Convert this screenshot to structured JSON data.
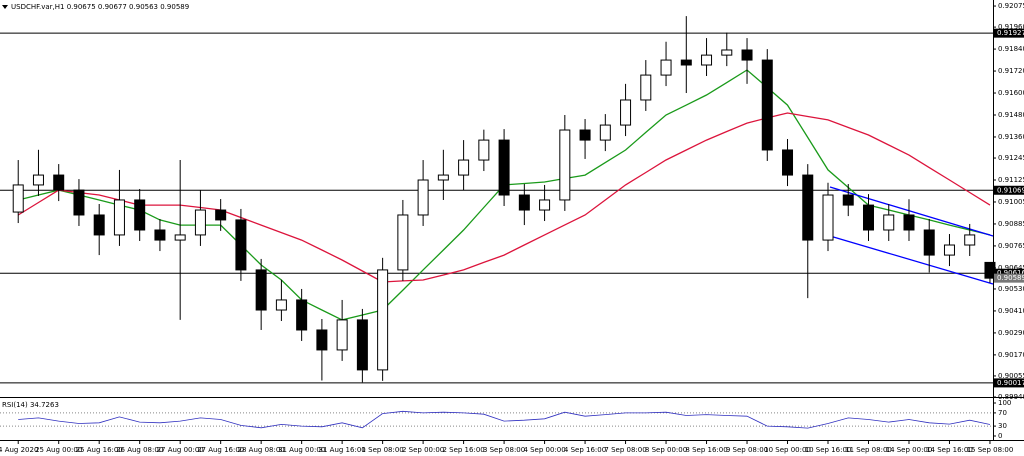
{
  "chart_data": {
    "type": "candlestick",
    "title": "USDCHF.var,H1  0.90675 0.90677 0.90563 0.90589",
    "xlim": [
      -0.9,
      48.15
    ],
    "xticks": [
      {
        "value": 0,
        "label": "4 Aug 2020"
      },
      {
        "value": 2,
        "label": "25 Aug 00:00"
      },
      {
        "value": 4,
        "label": "25 Aug 16:00"
      },
      {
        "value": 6,
        "label": "26 Aug 08:00"
      },
      {
        "value": 8,
        "label": "27 Aug 00:00"
      },
      {
        "value": 10,
        "label": "27 Aug 16:00"
      },
      {
        "value": 12,
        "label": "28 Aug 08:00"
      },
      {
        "value": 14,
        "label": "31 Aug 00:00"
      },
      {
        "value": 16,
        "label": "31 Aug 16:00"
      },
      {
        "value": 18,
        "label": "1 Sep 08:00"
      },
      {
        "value": 20,
        "label": "2 Sep 00:00"
      },
      {
        "value": 22,
        "label": "2 Sep 16:00"
      },
      {
        "value": 24,
        "label": "3 Sep 08:00"
      },
      {
        "value": 26,
        "label": "4 Sep 00:00"
      },
      {
        "value": 28,
        "label": "4 Sep 16:00"
      },
      {
        "value": 30,
        "label": "7 Sep 08:00"
      },
      {
        "value": 32,
        "label": "8 Sep 00:00"
      },
      {
        "value": 34,
        "label": "8 Sep 16:00"
      },
      {
        "value": 36,
        "label": "9 Sep 08:00"
      },
      {
        "value": 38,
        "label": "10 Sep 00:00"
      },
      {
        "value": 40,
        "label": "10 Sep 16:00"
      },
      {
        "value": 42,
        "label": "11 Sep 08:00"
      },
      {
        "value": 44,
        "label": "14 Sep 00:00"
      },
      {
        "value": 46,
        "label": "14 Sep 16:00"
      },
      {
        "value": 48,
        "label": "15 Sep 08:00"
      }
    ],
    "ylim": [
      0.8994,
      0.92108
    ],
    "yticks": [
      0.92075,
      {
        "value": 0.9196,
        "label": "0.91960"
      },
      {
        "value": 0.9184,
        "label": "0.91840"
      },
      {
        "value": 0.9172,
        "label": "0.91720"
      },
      {
        "value": 0.916,
        "label": "0.91600"
      },
      {
        "value": 0.9148,
        "label": "0.91480"
      },
      {
        "value": 0.9136,
        "label": "0.91360"
      },
      0.91245,
      0.91125,
      0.91005,
      0.90885,
      0.90765,
      0.90645,
      {
        "value": 0.9053,
        "label": "0.90530"
      },
      {
        "value": 0.9041,
        "label": "0.90410"
      },
      {
        "value": 0.9029,
        "label": "0.90290"
      },
      {
        "value": 0.9017,
        "label": "0.90170"
      },
      0.90055,
      {
        "value": 0.8994,
        "label": "0.89940"
      }
    ],
    "open": [
      0.9095,
      0.91098,
      0.91152,
      0.9107,
      0.90934,
      0.90825,
      0.91016,
      0.90852,
      0.90797,
      0.90825,
      0.90961,
      0.90907,
      0.90634,
      0.90415,
      0.9047,
      0.90306,
      0.90197,
      0.90361,
      0.90088,
      0.90634,
      0.90934,
      0.91125,
      0.91152,
      0.91234,
      0.91343,
      0.91043,
      0.90961,
      0.91016,
      0.91398,
      0.91343,
      0.91425,
      0.91562,
      0.91698,
      0.9178,
      0.91753,
      0.91807,
      0.91835,
      0.9178,
      0.91289,
      0.91152,
      0.90797,
      0.91043,
      0.90988,
      0.90852,
      0.90934,
      0.90852,
      0.90715,
      0.9077,
      0.90675
    ],
    "high": [
      0.91234,
      0.9129,
      0.91212,
      0.9113,
      0.90994,
      0.9118,
      0.91076,
      0.90912,
      0.91234,
      0.9107,
      0.91021,
      0.90967,
      0.90694,
      0.9058,
      0.9053,
      0.90366,
      0.9047,
      0.90421,
      0.907,
      0.91016,
      0.91234,
      0.9129,
      0.91343,
      0.914,
      0.91403,
      0.91103,
      0.91098,
      0.9148,
      0.91458,
      0.91485,
      0.9165,
      0.9178,
      0.9188,
      0.9202,
      0.919,
      0.9193,
      0.919,
      0.9184,
      0.91349,
      0.91212,
      0.9111,
      0.91103,
      0.91048,
      0.90994,
      0.9102,
      0.90912,
      0.9083,
      0.90885,
      0.90677
    ],
    "low": [
      0.9089,
      0.91038,
      0.9101,
      0.90874,
      0.90715,
      0.90765,
      0.90792,
      0.90737,
      0.90361,
      0.90765,
      0.90847,
      0.90574,
      0.90306,
      0.90355,
      0.90246,
      0.9003,
      0.90137,
      0.9002,
      0.90028,
      0.90574,
      0.90874,
      0.91016,
      0.9107,
      0.91174,
      0.90983,
      0.90879,
      0.90901,
      0.90956,
      0.9124,
      0.91283,
      0.91365,
      0.91502,
      0.91638,
      0.916,
      0.91693,
      0.91747,
      0.9165,
      0.91229,
      0.91092,
      0.9048,
      0.90737,
      0.90928,
      0.90792,
      0.90792,
      0.90792,
      0.9062,
      0.90655,
      0.9071,
      0.90563
    ],
    "close": [
      0.91098,
      0.91152,
      0.9107,
      0.90934,
      0.90825,
      0.91016,
      0.90852,
      0.90797,
      0.90825,
      0.90961,
      0.90907,
      0.90634,
      0.90415,
      0.9047,
      0.90306,
      0.90197,
      0.90361,
      0.90088,
      0.90634,
      0.90934,
      0.91125,
      0.91152,
      0.91234,
      0.91343,
      0.91043,
      0.90961,
      0.91016,
      0.91398,
      0.91343,
      0.91425,
      0.91562,
      0.91698,
      0.9178,
      0.91753,
      0.91807,
      0.91835,
      0.9178,
      0.91289,
      0.91152,
      0.90797,
      0.91043,
      0.90988,
      0.90852,
      0.90934,
      0.90852,
      0.90715,
      0.9077,
      0.90825,
      0.90589
    ],
    "lines": [
      {
        "color": "#1a9a1a",
        "values": [
          0.91016,
          0.91043,
          0.9107,
          0.91043,
          0.91016,
          0.90988,
          0.90961,
          0.90907,
          0.90879,
          0.90879,
          0.90879,
          0.9077,
          0.90661,
          0.90579,
          0.9047,
          0.90415,
          0.90361,
          0.90388,
          0.90415,
          0.90524,
          0.90634,
          0.90743,
          0.90852,
          0.90975,
          0.91098,
          0.91106,
          0.91114,
          0.91133,
          0.91152,
          0.9122,
          0.91289,
          0.91385,
          0.9148,
          0.91534,
          0.91589,
          0.91657,
          0.91726,
          0.9163,
          0.91534,
          0.91357,
          0.9118,
          0.91084,
          0.90988,
          0.90961,
          0.90934,
          0.90907,
          0.90879,
          0.90852,
          0.90825
        ]
      },
      {
        "color": "#dc143c",
        "values": [
          0.90934,
          0.91002,
          0.9107,
          0.91056,
          0.91043,
          0.91016,
          0.90988,
          0.90988,
          0.90988,
          0.90975,
          0.90961,
          0.9092,
          0.90879,
          0.90838,
          0.90797,
          0.90743,
          0.90688,
          0.90628,
          0.90568,
          0.90574,
          0.90579,
          0.90606,
          0.90634,
          0.90675,
          0.90715,
          0.9077,
          0.90825,
          0.9088,
          0.90934,
          0.91016,
          0.91098,
          0.91166,
          0.91234,
          0.91289,
          0.91343,
          0.9139,
          0.91436,
          0.91464,
          0.91491,
          0.91472,
          0.91453,
          0.91412,
          0.91371,
          0.91316,
          0.91261,
          0.91193,
          0.91125,
          0.91057,
          0.90988
        ]
      }
    ],
    "channel": [
      {
        "color": "#0000ff",
        "x": [
          40.1,
          48.15
        ],
        "values": [
          0.91087,
          0.90819
        ]
      },
      {
        "color": "#0000ff",
        "x": [
          40.1,
          48.15
        ],
        "values": [
          0.90819,
          0.90557
        ]
      }
    ],
    "levels": [
      0.91927,
      0.91069,
      0.90616,
      0.90017
    ],
    "last_price": 0.90589,
    "rsi": {
      "title": "RSI(14) 34.7263",
      "color": "#3030c0",
      "ylim": [
        0,
        100
      ],
      "yticks": [
        100,
        70,
        30,
        0
      ],
      "values": [
        50,
        55,
        45,
        38,
        40,
        58,
        42,
        40,
        45,
        55,
        50,
        32,
        25,
        35,
        30,
        28,
        40,
        25,
        68,
        75,
        70,
        72,
        70,
        66,
        45,
        48,
        52,
        72,
        60,
        65,
        70,
        70,
        72,
        62,
        65,
        62,
        60,
        30,
        28,
        24,
        38,
        55,
        50,
        42,
        50,
        40,
        36,
        48,
        34.7263
      ]
    }
  }
}
